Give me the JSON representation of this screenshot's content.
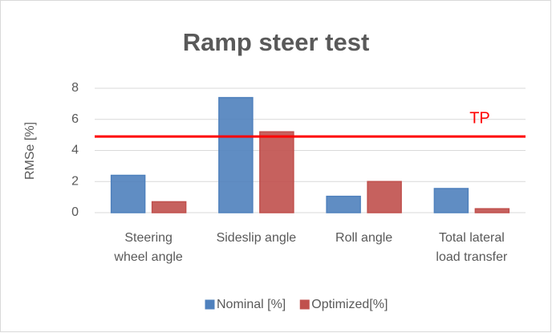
{
  "chart_data": {
    "type": "bar",
    "title": "Ramp steer test",
    "y_label": "RMSe [%]",
    "categories": [
      "Steering wheel angle",
      "Sideslip angle",
      "Roll angle",
      "Total lateral load transfer"
    ],
    "series": [
      {
        "name": "Nominal [%]",
        "color": "#4f81bd",
        "values": [
          2.4,
          7.4,
          1.05,
          1.55
        ]
      },
      {
        "name": "Optimized[%]",
        "color": "#c0504d",
        "values": [
          0.7,
          5.2,
          2.0,
          0.25
        ]
      }
    ],
    "threshold": {
      "label": "TP",
      "value": 4.9,
      "color": "#ff0000"
    },
    "ylim": [
      0,
      8
    ],
    "yticks": [
      0,
      2,
      4,
      6,
      8
    ],
    "grid": true,
    "legend": "bottom"
  }
}
